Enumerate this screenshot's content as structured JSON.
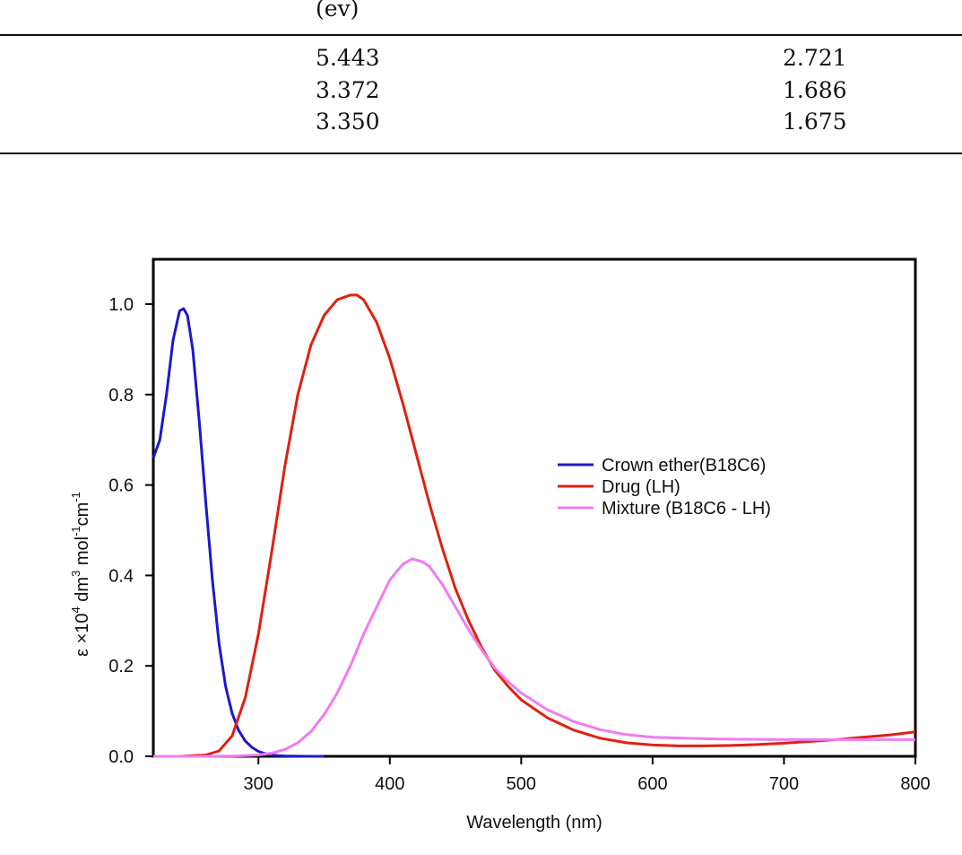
{
  "table": {
    "unit_label": "(ev)",
    "rows": [
      {
        "col1": "5.443",
        "col2": "2.721"
      },
      {
        "col1": "3.372",
        "col2": "1.686"
      },
      {
        "col1": "3.350",
        "col2": "1.675"
      }
    ]
  },
  "chart_data": {
    "type": "line",
    "xlabel": "Wavelength (nm)",
    "ylabel": {
      "base": "ε ×10",
      "exp1": "4",
      "mid1": " dm",
      "exp2": "3",
      "mid2": " mol",
      "exp3": "-1",
      "mid3": "cm",
      "exp4": "-1"
    },
    "xlim": [
      220,
      800
    ],
    "ylim": [
      0,
      1.1
    ],
    "xticks": [
      300,
      400,
      500,
      600,
      700,
      800
    ],
    "yticks": [
      "0.0",
      "0.2",
      "0.4",
      "0.6",
      "0.8",
      "1.0"
    ],
    "grid": false,
    "legend_position": "center-right",
    "series": [
      {
        "name": "Crown ether(B18C6)",
        "color": "#1a1acc",
        "x": [
          220,
          225,
          230,
          235,
          240,
          243,
          246,
          250,
          255,
          260,
          265,
          270,
          275,
          280,
          285,
          290,
          295,
          300,
          305,
          310,
          315,
          320,
          330,
          340,
          350
        ],
        "y": [
          0.66,
          0.7,
          0.8,
          0.92,
          0.985,
          0.99,
          0.975,
          0.9,
          0.74,
          0.56,
          0.39,
          0.25,
          0.155,
          0.095,
          0.057,
          0.034,
          0.02,
          0.011,
          0.006,
          0.003,
          0.0015,
          0.0007,
          0.0002,
          0.0,
          0.0
        ]
      },
      {
        "name": "Drug (LH)",
        "color": "#e02010",
        "x": [
          220,
          240,
          260,
          270,
          280,
          290,
          300,
          310,
          320,
          330,
          340,
          350,
          360,
          370,
          375,
          380,
          390,
          400,
          410,
          420,
          430,
          440,
          450,
          460,
          470,
          480,
          490,
          500,
          520,
          540,
          560,
          580,
          600,
          620,
          640,
          660,
          680,
          700,
          720,
          740,
          760,
          780,
          800
        ],
        "y": [
          0.0,
          0.0,
          0.003,
          0.012,
          0.045,
          0.13,
          0.27,
          0.45,
          0.64,
          0.8,
          0.91,
          0.975,
          1.01,
          1.02,
          1.02,
          1.01,
          0.96,
          0.88,
          0.78,
          0.67,
          0.56,
          0.46,
          0.37,
          0.3,
          0.24,
          0.19,
          0.155,
          0.125,
          0.085,
          0.058,
          0.04,
          0.03,
          0.025,
          0.023,
          0.023,
          0.024,
          0.026,
          0.029,
          0.033,
          0.037,
          0.042,
          0.047,
          0.054
        ]
      },
      {
        "name": "Mixture (B18C6 - LH)",
        "color": "#f07cf0",
        "x": [
          220,
          260,
          280,
          300,
          310,
          320,
          330,
          340,
          350,
          360,
          370,
          380,
          390,
          400,
          410,
          417,
          425,
          430,
          440,
          450,
          460,
          470,
          480,
          490,
          500,
          520,
          540,
          560,
          580,
          600,
          650,
          700,
          750,
          800
        ],
        "y": [
          0.0,
          0.0,
          0.0005,
          0.003,
          0.007,
          0.015,
          0.03,
          0.055,
          0.092,
          0.14,
          0.2,
          0.27,
          0.33,
          0.39,
          0.425,
          0.437,
          0.43,
          0.42,
          0.38,
          0.33,
          0.28,
          0.235,
          0.195,
          0.165,
          0.14,
          0.103,
          0.077,
          0.059,
          0.048,
          0.042,
          0.038,
          0.037,
          0.037,
          0.037
        ]
      }
    ]
  }
}
